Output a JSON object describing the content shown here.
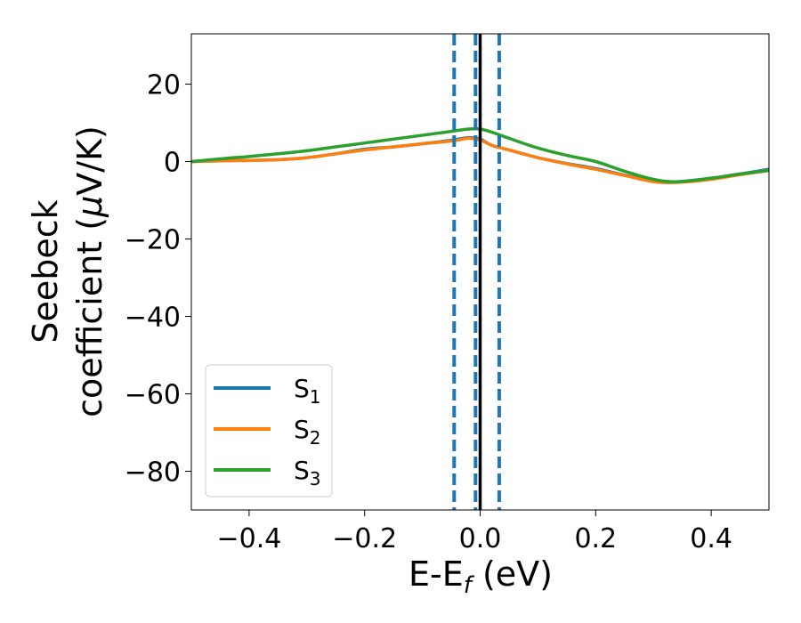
{
  "chart_data": {
    "type": "line",
    "xlabel": {
      "main": "E-E",
      "sub": "f",
      "unit": " (eV)"
    },
    "ylabel": {
      "line1": "Seebeck",
      "line2": "coefficient  (",
      "mu": "μ",
      "line2_end": "V/K)"
    },
    "xlim": [
      -0.5,
      0.5
    ],
    "ylim": [
      -90,
      33
    ],
    "xticks": [
      -0.4,
      -0.2,
      0.0,
      0.2,
      0.4
    ],
    "xtick_labels": [
      "−0.4",
      "−0.2",
      "0.0",
      "0.2",
      "0.4"
    ],
    "yticks": [
      -80,
      -60,
      -40,
      -20,
      0,
      20
    ],
    "ytick_labels": [
      "−80",
      "−60",
      "−40",
      "−20",
      "0",
      "20"
    ],
    "legend": {
      "placement": "lower-left"
    },
    "series": [
      {
        "name": "S",
        "sub": "1",
        "color": "#1f77b4",
        "x": [
          -0.5,
          -0.45,
          -0.4,
          -0.35,
          -0.3,
          -0.25,
          -0.2,
          -0.15,
          -0.1,
          -0.05,
          -0.02,
          0.0,
          0.02,
          0.05,
          0.1,
          0.15,
          0.2,
          0.25,
          0.3,
          0.34,
          0.4,
          0.45,
          0.5
        ],
        "y": [
          0.0,
          0.2,
          0.3,
          0.5,
          1.0,
          2.0,
          3.2,
          3.8,
          4.6,
          5.5,
          6.2,
          5.8,
          4.2,
          3.0,
          1.0,
          -0.5,
          -1.8,
          -3.5,
          -5.0,
          -5.2,
          -4.3,
          -3.2,
          -2.0
        ]
      },
      {
        "name": "S",
        "sub": "2",
        "color": "#ff7f0e",
        "x": [
          -0.5,
          -0.45,
          -0.4,
          -0.35,
          -0.3,
          -0.25,
          -0.2,
          -0.15,
          -0.1,
          -0.05,
          -0.02,
          0.0,
          0.02,
          0.05,
          0.1,
          0.15,
          0.2,
          0.25,
          0.3,
          0.34,
          0.4,
          0.45,
          0.5
        ],
        "y": [
          0.0,
          0.2,
          0.3,
          0.5,
          1.0,
          2.0,
          3.0,
          3.8,
          4.6,
          5.3,
          6.0,
          5.6,
          4.2,
          3.0,
          1.0,
          -0.6,
          -2.0,
          -3.6,
          -5.2,
          -5.4,
          -4.6,
          -3.4,
          -2.3
        ]
      },
      {
        "name": "S",
        "sub": "3",
        "color": "#2ca02c",
        "x": [
          -0.5,
          -0.45,
          -0.4,
          -0.35,
          -0.3,
          -0.25,
          -0.2,
          -0.15,
          -0.1,
          -0.05,
          -0.02,
          0.0,
          0.02,
          0.05,
          0.1,
          0.15,
          0.2,
          0.25,
          0.3,
          0.34,
          0.4,
          0.45,
          0.5
        ],
        "y": [
          0.0,
          0.7,
          1.3,
          2.0,
          2.8,
          3.8,
          4.8,
          5.8,
          6.8,
          7.8,
          8.4,
          8.4,
          7.6,
          6.0,
          3.5,
          1.6,
          0.0,
          -2.5,
          -4.6,
          -5.2,
          -4.3,
          -3.2,
          -2.3
        ]
      }
    ],
    "vlines": [
      {
        "x": -0.045,
        "style": "dashed",
        "color": "#1f77b4"
      },
      {
        "x": -0.008,
        "style": "dashed",
        "color": "#1f77b4"
      },
      {
        "x": 0.033,
        "style": "dashed",
        "color": "#1f77b4"
      },
      {
        "x": 0.0,
        "style": "solid",
        "color": "#000000"
      }
    ]
  }
}
